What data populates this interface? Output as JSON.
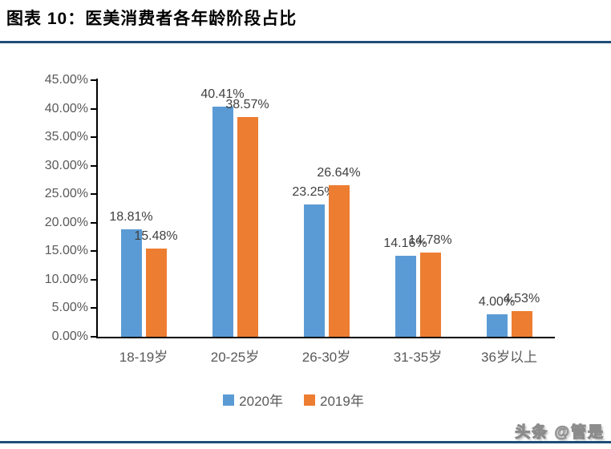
{
  "header": {
    "title": "图表 10：医美消费者各年龄阶段占比",
    "accent_color": "#1F4E79"
  },
  "chart_data": {
    "type": "bar",
    "title": "医美消费者各年龄阶段占比",
    "categories": [
      "18-19岁",
      "20-25岁",
      "26-30岁",
      "31-35岁",
      "36岁以上"
    ],
    "series": [
      {
        "name": "2020年",
        "color": "#5B9BD5",
        "values": [
          18.81,
          40.41,
          23.25,
          14.16,
          4.0
        ],
        "labels": [
          "18.81%",
          "40.41%",
          "23.25%",
          "14.16%",
          "4.00%"
        ]
      },
      {
        "name": "2019年",
        "color": "#ED7D31",
        "values": [
          15.48,
          38.57,
          26.64,
          14.78,
          4.53
        ],
        "labels": [
          "15.48%",
          "38.57%",
          "26.64%",
          "14.78%",
          "4.53%"
        ]
      }
    ],
    "y_ticks": [
      "45.00%",
      "40.00%",
      "35.00%",
      "30.00%",
      "25.00%",
      "20.00%",
      "15.00%",
      "10.00%",
      "5.00%",
      "0.00%"
    ],
    "ylim": [
      0,
      45
    ],
    "grid": false,
    "legend_position": "bottom",
    "axis_color": "#000000",
    "tick_label_color": "#595959",
    "value_label_color": "#404040"
  },
  "footer": {
    "watermark": "头条 @管是"
  }
}
